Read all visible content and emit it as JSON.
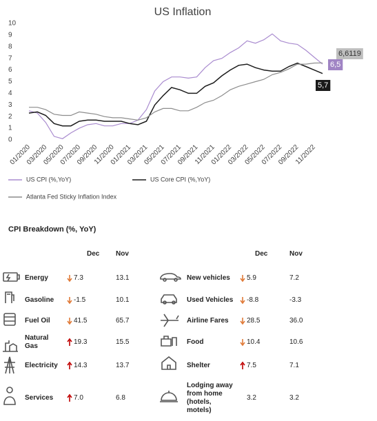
{
  "chart_data": {
    "type": "line",
    "title": "US Inflation",
    "categories": [
      "01/2020",
      null,
      "03/2020",
      null,
      "05/2020",
      null,
      "07/2020",
      null,
      "09/2020",
      null,
      "11/2020",
      null,
      "01/2021",
      null,
      "03/2021",
      null,
      "05/2021",
      null,
      "07/2021",
      null,
      "09/2021",
      null,
      "11/2021",
      null,
      "01/2022",
      null,
      "03/2022",
      null,
      "05/2022",
      null,
      "07/2022",
      null,
      "09/2022",
      null,
      "11/2022",
      null
    ],
    "series": [
      {
        "name": "US CPI (%,YoY)",
        "color": "#a98bcf",
        "values": [
          2.5,
          2.3,
          1.5,
          0.3,
          0.1,
          0.6,
          1.0,
          1.3,
          1.4,
          1.2,
          1.2,
          1.4,
          1.4,
          1.7,
          2.6,
          4.2,
          5.0,
          5.4,
          5.4,
          5.3,
          5.4,
          6.2,
          6.8,
          7.0,
          7.5,
          7.9,
          8.5,
          8.3,
          8.6,
          9.1,
          8.5,
          8.3,
          8.2,
          7.7,
          7.1,
          6.5
        ],
        "value_labels": [
          null,
          null,
          null,
          null,
          null,
          null,
          null,
          null,
          null,
          null,
          null,
          null,
          null,
          null,
          null,
          null,
          null,
          null,
          null,
          null,
          null,
          null,
          null,
          null,
          null,
          null,
          null,
          null,
          null,
          null,
          null,
          null,
          null,
          null,
          null,
          "6,5"
        ]
      },
      {
        "name": "US Core CPI (%,YoY)",
        "color": "#1b1b1b",
        "values": [
          2.3,
          2.4,
          2.1,
          1.4,
          1.2,
          1.2,
          1.6,
          1.7,
          1.7,
          1.6,
          1.6,
          1.6,
          1.4,
          1.3,
          1.6,
          3.0,
          3.8,
          4.5,
          4.3,
          4.0,
          4.0,
          4.6,
          4.9,
          5.5,
          6.0,
          6.4,
          6.5,
          6.2,
          6.0,
          5.9,
          5.9,
          6.3,
          6.6,
          6.3,
          6.0,
          5.7
        ],
        "value_labels": [
          null,
          null,
          null,
          null,
          null,
          null,
          null,
          null,
          null,
          null,
          null,
          null,
          null,
          null,
          null,
          null,
          null,
          null,
          null,
          null,
          null,
          null,
          null,
          null,
          null,
          null,
          null,
          null,
          null,
          null,
          null,
          null,
          null,
          null,
          null,
          "5,7"
        ]
      },
      {
        "name": "Atlanta Fed Sticky Inflation Index",
        "color": "#8c8c8c",
        "values": [
          2.8,
          2.8,
          2.6,
          2.2,
          2.1,
          2.1,
          2.4,
          2.3,
          2.2,
          2.0,
          1.9,
          1.9,
          1.8,
          1.7,
          1.9,
          2.4,
          2.7,
          2.7,
          2.5,
          2.5,
          2.8,
          3.2,
          3.4,
          3.8,
          4.3,
          4.6,
          4.8,
          5.0,
          5.2,
          5.6,
          5.8,
          6.1,
          6.5,
          6.5,
          6.6,
          6.6119
        ],
        "value_labels": [
          null,
          null,
          null,
          null,
          null,
          null,
          null,
          null,
          null,
          null,
          null,
          null,
          null,
          null,
          null,
          null,
          null,
          null,
          null,
          null,
          null,
          null,
          null,
          null,
          null,
          null,
          null,
          null,
          null,
          null,
          null,
          null,
          null,
          null,
          null,
          "6,6119"
        ]
      }
    ],
    "ylim": [
      0,
      10
    ],
    "yticks": [
      0,
      1,
      2,
      3,
      4,
      5,
      6,
      7,
      8,
      9,
      10
    ],
    "grid": false
  },
  "table": {
    "title": "CPI Breakdown (%, YoY)",
    "columns": [
      "Dec",
      "Nov",
      "Dec",
      "Nov"
    ],
    "left": [
      {
        "label": "Energy",
        "trend": "down",
        "dec": "7.3",
        "nov": "13.1"
      },
      {
        "label": "Gasoline",
        "trend": "down",
        "dec": "-1.5",
        "nov": "10.1"
      },
      {
        "label": "Fuel Oil",
        "trend": "down",
        "dec": "41.5",
        "nov": "65.7"
      },
      {
        "label": "Natural Gas",
        "trend": "up",
        "dec": "19.3",
        "nov": "15.5"
      },
      {
        "label": "Electricity",
        "trend": "up",
        "dec": "14.3",
        "nov": "13.7"
      },
      {
        "label": "Services",
        "trend": "up",
        "dec": "7.0",
        "nov": "6.8"
      }
    ],
    "right": [
      {
        "label": "New vehicles",
        "trend": "down",
        "dec": "5.9",
        "nov": "7.2"
      },
      {
        "label": "Used Vehicles",
        "trend": "down",
        "dec": "-8.8",
        "nov": "-3.3"
      },
      {
        "label": "Airline Fares",
        "trend": "down",
        "dec": "28.5",
        "nov": "36.0"
      },
      {
        "label": "Food",
        "trend": "down",
        "dec": "10.4",
        "nov": "10.6"
      },
      {
        "label": "Shelter",
        "trend": "up",
        "dec": "7.5",
        "nov": "7.1"
      },
      {
        "label": "Lodging away from home (hotels, motels)",
        "dec": "3.2",
        "nov": "3.2"
      }
    ]
  }
}
